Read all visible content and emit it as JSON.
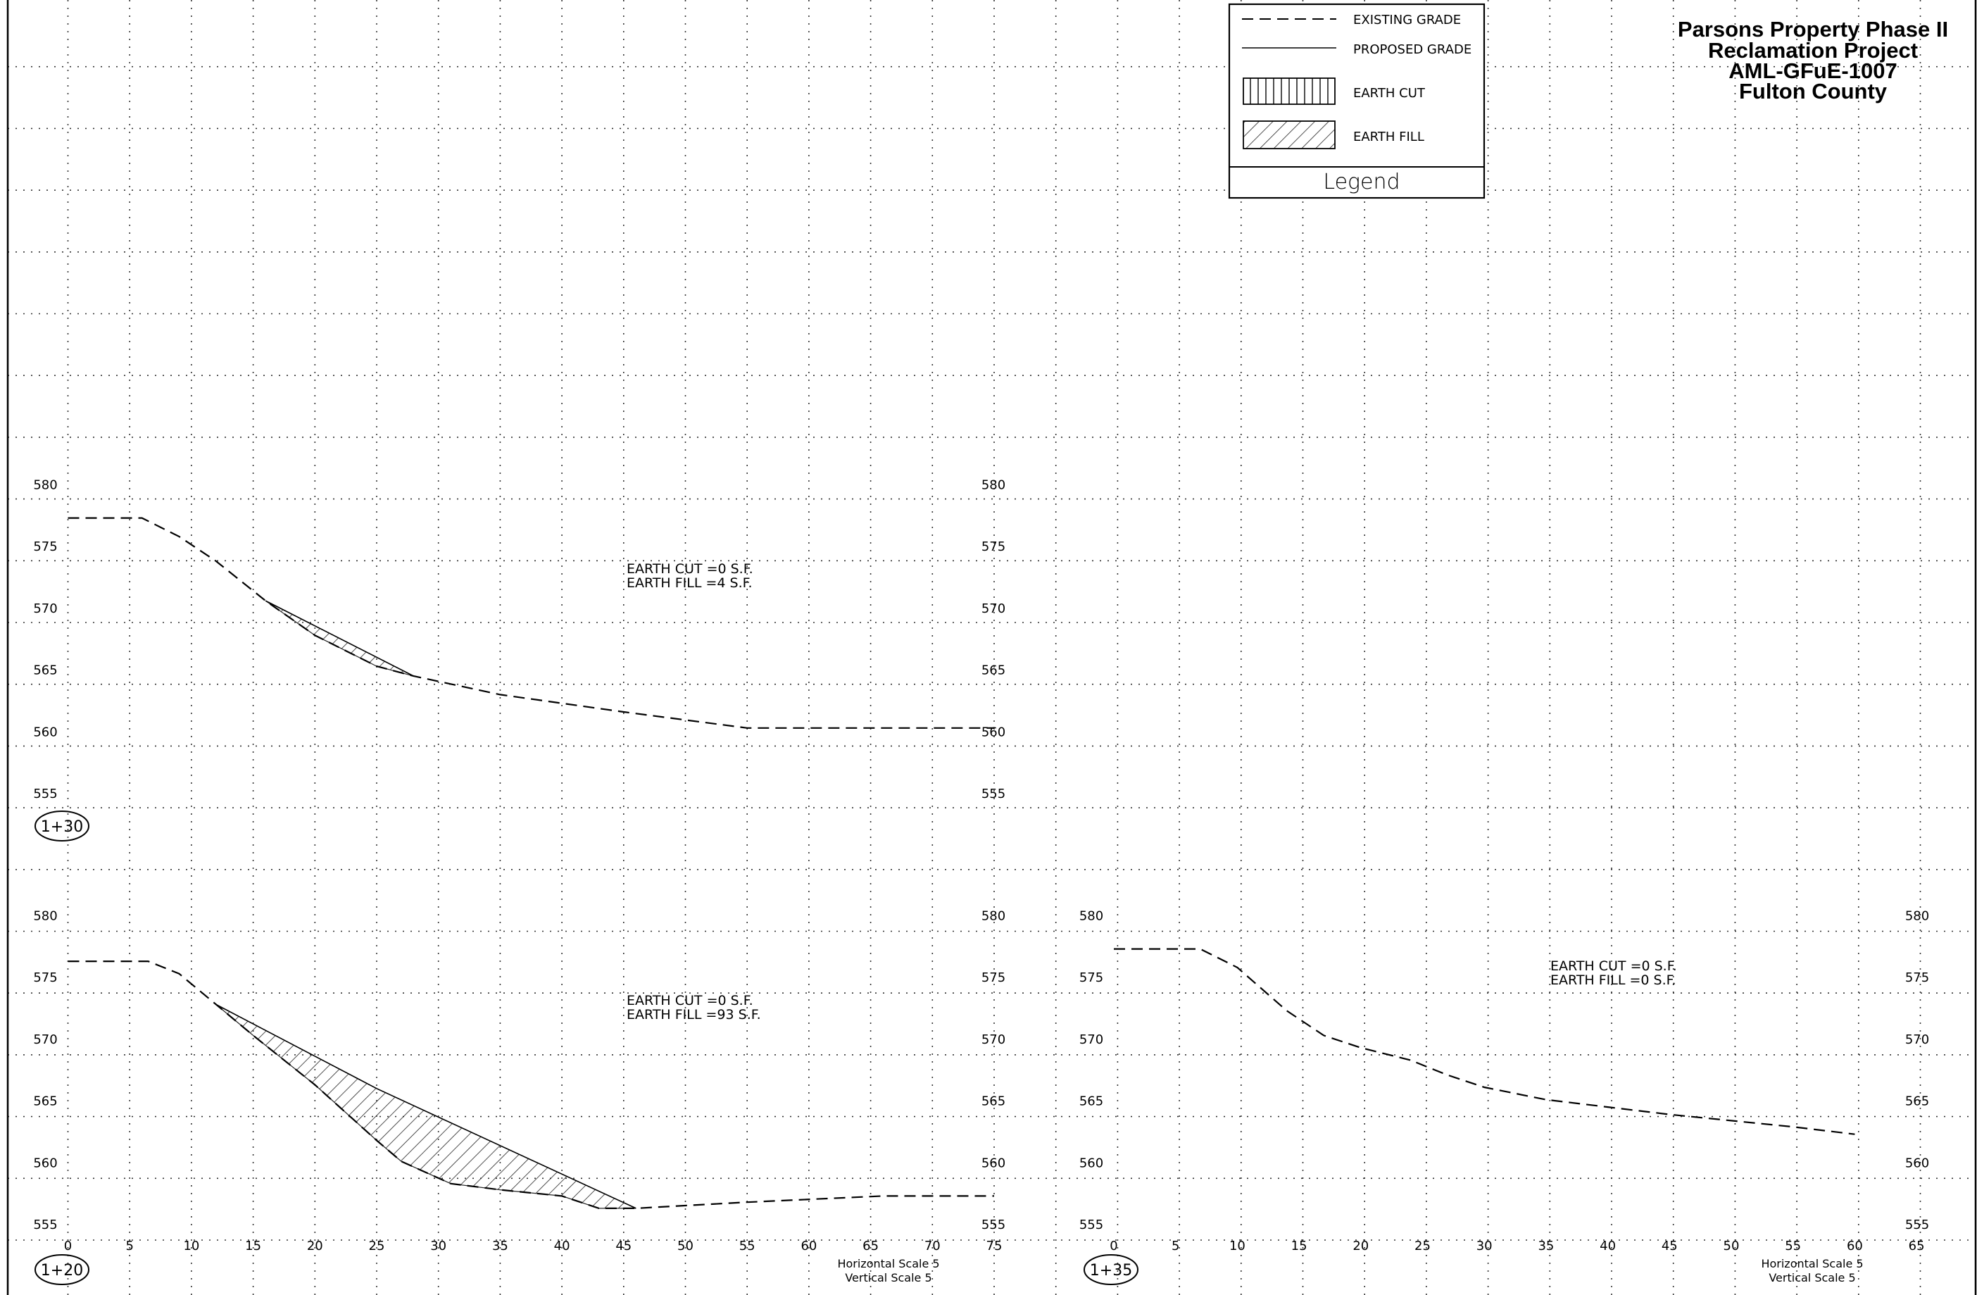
{
  "title": {
    "lines": [
      "Parsons Property Phase II",
      "Reclamation Project",
      "AML-GFuE-1007",
      "Fulton County"
    ]
  },
  "legend": {
    "title": "Legend",
    "items": [
      {
        "symbol": "dashed-line",
        "label": "EXISTING GRADE"
      },
      {
        "symbol": "solid-line",
        "label": "PROPOSED GRADE"
      },
      {
        "symbol": "vertical-hatch",
        "label": "EARTH CUT"
      },
      {
        "symbol": "diagonal-hatch",
        "label": "EARTH FILL"
      }
    ]
  },
  "sections": [
    {
      "station": "1+30",
      "cut": "EARTH CUT =0 S.F.",
      "fill": "EARTH FILL =4 S.F.",
      "elevations": [
        580,
        575,
        570,
        565,
        560,
        555
      ],
      "offsets": [],
      "scale_text": [],
      "existing": [
        [
          0,
          578
        ],
        [
          6,
          578
        ],
        [
          9,
          576.5
        ],
        [
          12,
          574.5
        ],
        [
          16,
          571.3
        ],
        [
          20,
          568.5
        ],
        [
          25,
          566
        ],
        [
          28,
          565.2
        ],
        [
          35,
          563.7
        ],
        [
          45,
          562.3
        ],
        [
          55,
          561
        ],
        [
          65,
          561
        ],
        [
          75,
          561
        ]
      ],
      "proposed": [
        [
          16,
          571.3
        ],
        [
          28,
          565.2
        ]
      ]
    },
    {
      "station": "1+20",
      "cut": "EARTH CUT =0 S.F.",
      "fill": "EARTH FILL =93 S.F.",
      "elevations": [
        580,
        575,
        570,
        565,
        560,
        555
      ],
      "offsets": [
        "0",
        "5",
        "10",
        "15",
        "20",
        "25",
        "30",
        "35",
        "40",
        "45",
        "50",
        "55",
        "60",
        "65",
        "70",
        "75"
      ],
      "scale_text": [
        "Horizontal Scale 5",
        "Vertical Scale 5"
      ],
      "existing": [
        [
          0,
          577
        ],
        [
          6.5,
          577
        ],
        [
          9,
          576
        ],
        [
          12,
          573.5
        ],
        [
          15,
          571
        ],
        [
          20,
          567
        ],
        [
          25,
          562.5
        ],
        [
          27,
          560.8
        ],
        [
          31,
          559
        ],
        [
          35,
          558.5
        ],
        [
          40,
          558
        ],
        [
          43,
          557
        ],
        [
          46,
          557
        ],
        [
          55,
          557.5
        ],
        [
          66,
          558
        ],
        [
          75,
          558
        ]
      ],
      "proposed": [
        [
          12,
          573.5
        ],
        [
          25,
          566.7
        ],
        [
          46,
          557
        ]
      ]
    },
    {
      "station": "1+35",
      "cut": "EARTH CUT =0 S.F.",
      "fill": "EARTH FILL =0 S.F.",
      "elevations": [
        580,
        575,
        570,
        565,
        560,
        555
      ],
      "offsets": [
        "0",
        "5",
        "10",
        "15",
        "20",
        "25",
        "30",
        "35",
        "40",
        "45",
        "50",
        "55",
        "60",
        "65"
      ],
      "scale_text": [
        "Horizontal Scale 5",
        "Vertical Scale 5"
      ],
      "existing": [
        [
          0,
          578
        ],
        [
          7,
          578
        ],
        [
          10,
          576.5
        ],
        [
          14,
          573
        ],
        [
          17,
          571
        ],
        [
          20,
          570
        ],
        [
          24,
          569
        ],
        [
          27,
          567.8
        ],
        [
          30,
          566.8
        ],
        [
          35,
          565.8
        ],
        [
          40,
          565.2
        ],
        [
          45,
          564.6
        ],
        [
          50,
          564.1
        ],
        [
          55,
          563.6
        ],
        [
          60,
          563
        ]
      ],
      "proposed": []
    }
  ]
}
